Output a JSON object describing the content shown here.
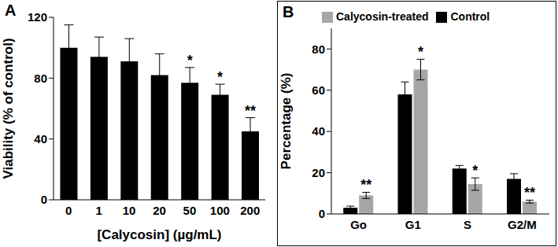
{
  "chart_data": [
    {
      "type": "bar",
      "title": "A",
      "categories": [
        "0",
        "1",
        "10",
        "20",
        "50",
        "100",
        "200"
      ],
      "values": [
        100,
        94,
        91,
        82,
        77,
        69,
        45
      ],
      "errors": [
        15,
        13,
        15,
        14,
        10,
        7,
        9
      ],
      "significance": [
        null,
        null,
        null,
        null,
        "*",
        "*",
        "**"
      ],
      "color": "#000000",
      "xlabel": "[Calycosin] (µg/mL)",
      "ylabel": "Viability (% of control)",
      "ylim": [
        0,
        120
      ],
      "yticks": [
        0,
        40,
        80,
        120
      ],
      "grid": false
    },
    {
      "type": "bar",
      "title": "B",
      "categories": [
        "Go",
        "G1",
        "S",
        "G2/M"
      ],
      "series": [
        {
          "name": "Control",
          "color": "#000000",
          "values": [
            3,
            58,
            22,
            17
          ],
          "errors": [
            0.8,
            6,
            1.5,
            2.5
          ]
        },
        {
          "name": "Calycosin-treated",
          "color": "#a6a6a6",
          "values": [
            9,
            70,
            14.5,
            6
          ],
          "errors": [
            1.5,
            5,
            3,
            0.7
          ],
          "significance": [
            "**",
            "*",
            "*",
            "**"
          ]
        }
      ],
      "ylabel": "Percentage (%)",
      "ylim": [
        0,
        90
      ],
      "yticks": [
        0,
        20,
        40,
        60,
        80
      ],
      "legend": "top",
      "grid": false
    }
  ]
}
